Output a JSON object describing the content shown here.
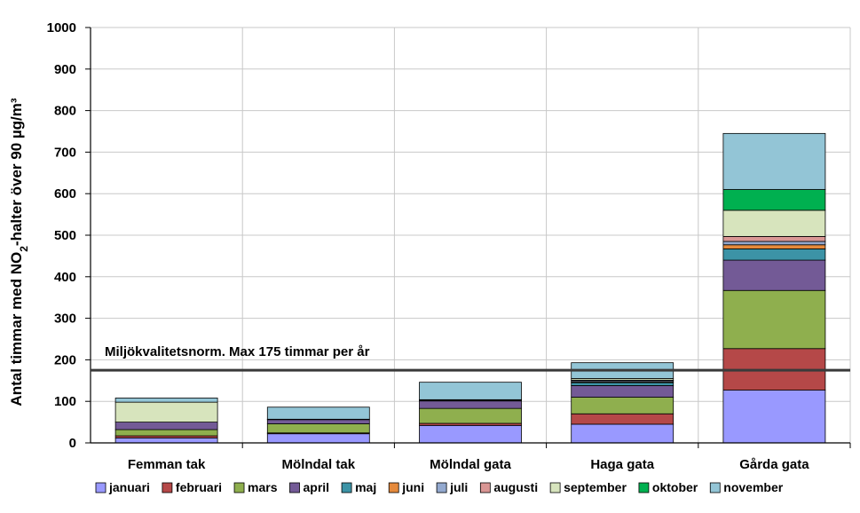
{
  "chart_data": {
    "type": "bar",
    "stacked": true,
    "ylabel_prefix": "Antal timmar med NO",
    "ylabel_sub": "2",
    "ylabel_suffix": "-halter över 90 µg/m³",
    "ylim": [
      0,
      1000
    ],
    "yticks": [
      "0",
      "100",
      "200",
      "300",
      "400",
      "500",
      "600",
      "700",
      "800",
      "900",
      "1000"
    ],
    "grid": true,
    "legend_position": "bottom",
    "categories": [
      "Femman tak",
      "Mölndal tak",
      "Mölndal gata",
      "Haga gata",
      "Gårda gata"
    ],
    "series": [
      {
        "name": "januari",
        "color": "#9999FF",
        "values": [
          12,
          22,
          42,
          45,
          127
        ]
      },
      {
        "name": "februari",
        "color": "#B54848",
        "values": [
          5,
          2,
          5,
          25,
          100
        ]
      },
      {
        "name": "mars",
        "color": "#8FAF4E",
        "values": [
          15,
          22,
          36,
          40,
          140
        ]
      },
      {
        "name": "april",
        "color": "#735A96",
        "values": [
          18,
          10,
          18,
          28,
          73
        ]
      },
      {
        "name": "maj",
        "color": "#3C93A6",
        "values": [
          0,
          1,
          1,
          7,
          27
        ]
      },
      {
        "name": "juni",
        "color": "#E58A3C",
        "values": [
          0,
          0,
          1,
          2,
          10
        ]
      },
      {
        "name": "juli",
        "color": "#93A9CF",
        "values": [
          0,
          0,
          0,
          3,
          8
        ]
      },
      {
        "name": "augusti",
        "color": "#D99694",
        "values": [
          0,
          0,
          0,
          1,
          12
        ]
      },
      {
        "name": "september",
        "color": "#D7E4BD",
        "values": [
          48,
          0,
          1,
          4,
          63
        ]
      },
      {
        "name": "oktober",
        "color": "#00B050",
        "values": [
          0,
          0,
          0,
          0,
          50
        ]
      },
      {
        "name": "november",
        "color": "#93C5D6",
        "values": [
          10,
          29,
          42,
          38,
          135
        ]
      }
    ],
    "reference_line": {
      "value": 175,
      "label": "Miljökvalitetsnorm. Max 175 timmar per år"
    }
  }
}
